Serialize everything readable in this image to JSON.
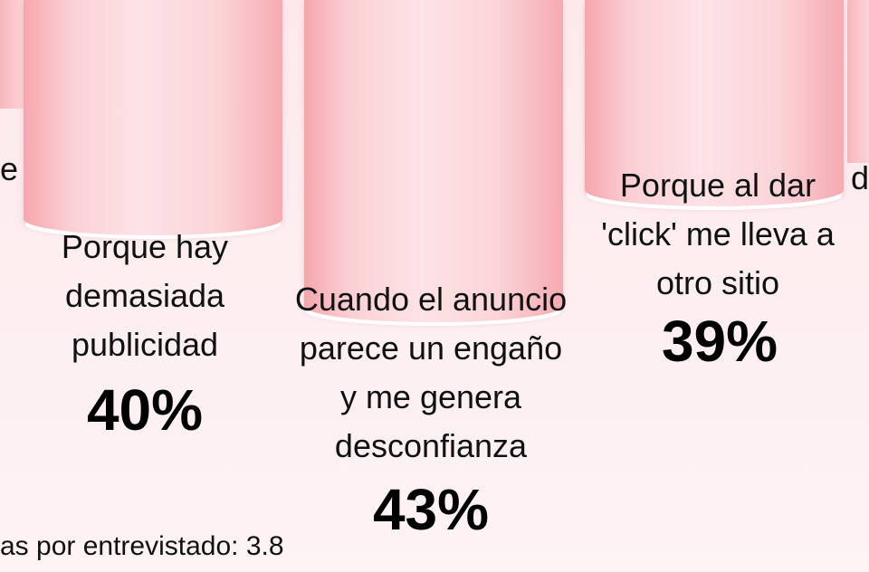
{
  "chart_data": {
    "type": "bar",
    "categories": [
      "Porque hay demasiada publicidad",
      "Cuando el anuncio parece un engaño y me genera desconfianza",
      "Porque al dar 'click' me lleva a otro sitio"
    ],
    "values": [
      40,
      43,
      39
    ],
    "value_labels": [
      "40%",
      "43%",
      "39%"
    ],
    "label_lines": [
      [
        "Porque hay",
        "demasiada",
        "publicidad"
      ],
      [
        "Cuando el anuncio",
        "parece un engaño",
        "y me genera",
        "desconfianza"
      ],
      [
        "Porque al dar",
        "'click' me lleva a",
        "otro sitio"
      ]
    ],
    "partial_left_text": "e",
    "partial_right_text": "d",
    "footnote": "as por entrevistado: 3.8",
    "colors": {
      "column_edge": "#f6a6ad",
      "column_center": "#fde3e6",
      "background": "#fde9ec"
    }
  }
}
